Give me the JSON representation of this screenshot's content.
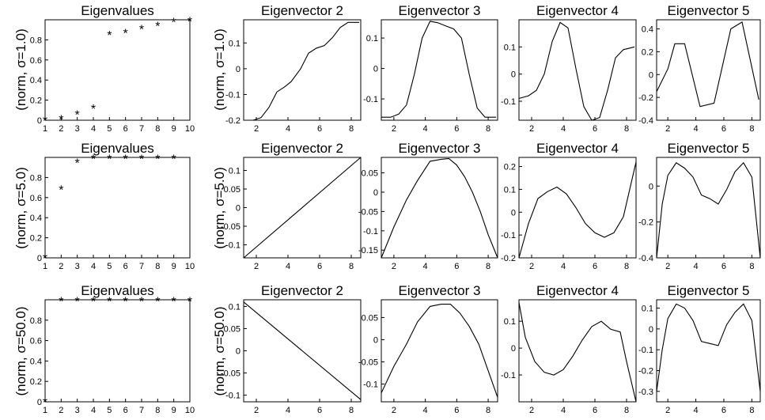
{
  "figure": {
    "row_labels": [
      "(norm, σ=1.0)",
      "(norm, σ=5.0)",
      "(norm, σ=50.0)"
    ]
  },
  "chart_data": [
    {
      "row": 0,
      "col": 0,
      "type": "scatter",
      "title": "Eigenvalues",
      "marker": "*",
      "x": [
        1,
        2,
        3,
        4,
        5,
        6,
        7,
        8,
        9,
        10
      ],
      "y": [
        0.0,
        0.01,
        0.06,
        0.12,
        0.85,
        0.87,
        0.91,
        0.94,
        0.98,
        0.99
      ],
      "xlim": [
        1,
        10
      ],
      "ylim": [
        0,
        1.0
      ],
      "xticks": [
        1,
        2,
        3,
        4,
        5,
        6,
        7,
        8,
        9,
        10
      ],
      "yticks": [
        0,
        0.2,
        0.4,
        0.6,
        0.8
      ]
    },
    {
      "row": 0,
      "col": 1,
      "type": "line",
      "title": "Eigenvector 2",
      "x": [
        1.2,
        1.8,
        2.3,
        2.8,
        3.3,
        3.8,
        4.2,
        4.8,
        5.3,
        5.8,
        6.3,
        6.8,
        7.3,
        7.8,
        8.5
      ],
      "y": [
        -0.2,
        -0.2,
        -0.19,
        -0.15,
        -0.09,
        -0.07,
        -0.05,
        0.0,
        0.06,
        0.08,
        0.09,
        0.12,
        0.16,
        0.18,
        0.18
      ],
      "xlim": [
        1.2,
        8.6
      ],
      "ylim": [
        -0.2,
        0.19
      ],
      "xticks": [
        2,
        4,
        6,
        8
      ],
      "yticks": [
        -0.2,
        -0.1,
        0,
        0.1
      ]
    },
    {
      "row": 0,
      "col": 2,
      "type": "line",
      "title": "Eigenvector 3",
      "x": [
        1.2,
        1.8,
        2.3,
        2.8,
        3.3,
        3.8,
        4.3,
        4.8,
        5.3,
        5.8,
        6.3,
        6.8,
        7.3,
        7.8,
        8.5
      ],
      "y": [
        -0.16,
        -0.16,
        -0.15,
        -0.12,
        -0.02,
        0.1,
        0.155,
        0.15,
        0.14,
        0.13,
        0.1,
        -0.02,
        -0.13,
        -0.16,
        -0.16
      ],
      "xlim": [
        1.2,
        8.6
      ],
      "ylim": [
        -0.17,
        0.16
      ],
      "xticks": [
        2,
        4,
        6,
        8
      ],
      "yticks": [
        -0.1,
        0,
        0.1
      ]
    },
    {
      "row": 0,
      "col": 3,
      "type": "line",
      "title": "Eigenvector 4",
      "x": [
        1.2,
        1.8,
        2.3,
        2.8,
        3.3,
        3.8,
        4.3,
        4.8,
        5.3,
        5.8,
        6.3,
        6.8,
        7.3,
        7.8,
        8.5
      ],
      "y": [
        -0.09,
        -0.08,
        -0.06,
        0.0,
        0.12,
        0.19,
        0.17,
        0.02,
        -0.12,
        -0.17,
        -0.16,
        -0.06,
        0.06,
        0.09,
        0.1
      ],
      "xlim": [
        1.2,
        8.6
      ],
      "ylim": [
        -0.17,
        0.2
      ],
      "xticks": [
        2,
        4,
        6,
        8
      ],
      "yticks": [
        -0.1,
        0,
        0.1
      ]
    },
    {
      "row": 0,
      "col": 4,
      "type": "line",
      "title": "Eigenvector 5",
      "x": [
        1.2,
        2.0,
        2.5,
        3.2,
        4.3,
        5.3,
        6.5,
        7.3,
        8.5
      ],
      "y": [
        -0.15,
        0.05,
        0.27,
        0.27,
        -0.28,
        -0.25,
        0.4,
        0.46,
        -0.22
      ],
      "xlim": [
        1.2,
        8.6
      ],
      "ylim": [
        -0.4,
        0.48
      ],
      "xticks": [
        2,
        4,
        6,
        8
      ],
      "yticks": [
        -0.4,
        -0.2,
        0,
        0.2,
        0.4
      ]
    },
    {
      "row": 1,
      "col": 0,
      "type": "scatter",
      "title": "Eigenvalues",
      "marker": "*",
      "x": [
        1,
        2,
        3,
        4,
        5,
        6,
        7,
        8,
        9
      ],
      "y": [
        0.0,
        0.68,
        0.95,
        0.99,
        0.99,
        0.99,
        0.99,
        0.99,
        0.99
      ],
      "xlim": [
        1,
        10
      ],
      "ylim": [
        0,
        1.0
      ],
      "xticks": [
        1,
        2,
        3,
        4,
        5,
        6,
        7,
        8,
        9,
        10
      ],
      "yticks": [
        0,
        0.2,
        0.4,
        0.6,
        0.8
      ]
    },
    {
      "row": 1,
      "col": 1,
      "type": "line",
      "title": "Eigenvector 2",
      "x": [
        1.2,
        8.6
      ],
      "y": [
        -0.135,
        0.135
      ],
      "xlim": [
        1.2,
        8.6
      ],
      "ylim": [
        -0.135,
        0.135
      ],
      "xticks": [
        2,
        4,
        6,
        8
      ],
      "yticks": [
        -0.1,
        -0.05,
        0,
        0.05,
        0.1
      ]
    },
    {
      "row": 1,
      "col": 2,
      "type": "line",
      "title": "Eigenvector 3",
      "x": [
        1.2,
        2.0,
        2.8,
        3.5,
        4.3,
        5.0,
        5.5,
        6.0,
        6.5,
        7.0,
        7.5,
        8.0,
        8.6
      ],
      "y": [
        -0.17,
        -0.09,
        -0.02,
        0.03,
        0.08,
        0.085,
        0.087,
        0.07,
        0.04,
        0.0,
        -0.05,
        -0.11,
        -0.17
      ],
      "xlim": [
        1.2,
        8.6
      ],
      "ylim": [
        -0.17,
        0.09
      ],
      "xticks": [
        2,
        4,
        6,
        8
      ],
      "yticks": [
        -0.15,
        -0.1,
        -0.05,
        0,
        0.05
      ]
    },
    {
      "row": 1,
      "col": 3,
      "type": "line",
      "title": "Eigenvector 4",
      "x": [
        1.2,
        1.8,
        2.4,
        3.0,
        3.6,
        4.2,
        4.8,
        5.4,
        6.0,
        6.6,
        7.2,
        7.8,
        8.6
      ],
      "y": [
        -0.2,
        -0.05,
        0.06,
        0.09,
        0.11,
        0.08,
        0.02,
        -0.05,
        -0.09,
        -0.11,
        -0.09,
        -0.02,
        0.22
      ],
      "xlim": [
        1.2,
        8.6
      ],
      "ylim": [
        -0.2,
        0.24
      ],
      "xticks": [
        2,
        4,
        6,
        8
      ],
      "yticks": [
        -0.2,
        -0.1,
        0,
        0.1,
        0.2
      ]
    },
    {
      "row": 1,
      "col": 4,
      "type": "line",
      "title": "Eigenvector 5",
      "x": [
        1.2,
        1.6,
        2.0,
        2.6,
        3.2,
        3.8,
        4.4,
        5.0,
        5.6,
        6.2,
        6.8,
        7.4,
        8.0,
        8.6
      ],
      "y": [
        -0.4,
        -0.1,
        0.06,
        0.13,
        0.1,
        0.05,
        -0.05,
        -0.07,
        -0.1,
        -0.02,
        0.08,
        0.13,
        0.05,
        -0.4
      ],
      "xlim": [
        1.2,
        8.6
      ],
      "ylim": [
        -0.4,
        0.16
      ],
      "xticks": [
        2,
        4,
        6,
        8
      ],
      "yticks": [
        -0.4,
        -0.2,
        0
      ]
    },
    {
      "row": 2,
      "col": 0,
      "type": "scatter",
      "title": "Eigenvalues",
      "marker": "*",
      "x": [
        1,
        2,
        3,
        4,
        5,
        6,
        7,
        8,
        9,
        10
      ],
      "y": [
        0.0,
        0.99,
        0.99,
        0.99,
        0.99,
        0.99,
        0.99,
        0.99,
        0.99,
        0.99
      ],
      "xlim": [
        1,
        10
      ],
      "ylim": [
        0,
        1.0
      ],
      "xticks": [
        1,
        2,
        3,
        4,
        5,
        6,
        7,
        8,
        9,
        10
      ],
      "yticks": [
        0,
        0.2,
        0.4,
        0.6,
        0.8
      ]
    },
    {
      "row": 2,
      "col": 1,
      "type": "line",
      "title": "Eigenvector 2",
      "x": [
        1.2,
        8.6
      ],
      "y": [
        0.11,
        -0.11
      ],
      "xlim": [
        1.2,
        8.6
      ],
      "ylim": [
        -0.115,
        0.115
      ],
      "xticks": [
        2,
        4,
        6,
        8
      ],
      "yticks": [
        -0.1,
        -0.05,
        0,
        0.05,
        0.1
      ]
    },
    {
      "row": 2,
      "col": 2,
      "type": "line",
      "title": "Eigenvector 3",
      "x": [
        1.2,
        2.0,
        2.8,
        3.5,
        4.3,
        5.0,
        5.6,
        6.2,
        6.8,
        7.4,
        8.0,
        8.6
      ],
      "y": [
        -0.12,
        -0.06,
        -0.01,
        0.04,
        0.075,
        0.08,
        0.08,
        0.06,
        0.03,
        -0.01,
        -0.07,
        -0.13
      ],
      "xlim": [
        1.2,
        8.6
      ],
      "ylim": [
        -0.14,
        0.09
      ],
      "xticks": [
        2,
        4,
        6,
        8
      ],
      "yticks": [
        -0.1,
        -0.05,
        0,
        0.05
      ]
    },
    {
      "row": 2,
      "col": 3,
      "type": "line",
      "title": "Eigenvector 4",
      "x": [
        1.2,
        1.6,
        2.2,
        2.8,
        3.4,
        4.0,
        4.6,
        5.2,
        5.8,
        6.4,
        7.0,
        7.6,
        8.0,
        8.6
      ],
      "y": [
        0.17,
        0.04,
        -0.05,
        -0.09,
        -0.1,
        -0.08,
        -0.03,
        0.03,
        0.08,
        0.1,
        0.07,
        0.06,
        -0.05,
        -0.2
      ],
      "xlim": [
        1.2,
        8.6
      ],
      "ylim": [
        -0.2,
        0.18
      ],
      "xticks": [
        2,
        4,
        6,
        8
      ],
      "yticks": [
        -0.1,
        0,
        0.1
      ]
    },
    {
      "row": 2,
      "col": 4,
      "type": "line",
      "title": "Eigenvector 5",
      "x": [
        1.2,
        1.6,
        2.0,
        2.6,
        3.2,
        3.8,
        4.4,
        5.0,
        5.6,
        6.2,
        6.8,
        7.4,
        8.0,
        8.6
      ],
      "y": [
        -0.3,
        -0.1,
        0.05,
        0.12,
        0.1,
        0.04,
        -0.06,
        -0.07,
        -0.08,
        0.02,
        0.08,
        0.12,
        0.04,
        -0.3
      ],
      "xlim": [
        1.2,
        8.6
      ],
      "ylim": [
        -0.35,
        0.14
      ],
      "xticks": [
        2,
        4,
        6,
        8
      ],
      "yticks": [
        -0.3,
        -0.2,
        -0.1,
        0,
        0.1
      ]
    }
  ]
}
